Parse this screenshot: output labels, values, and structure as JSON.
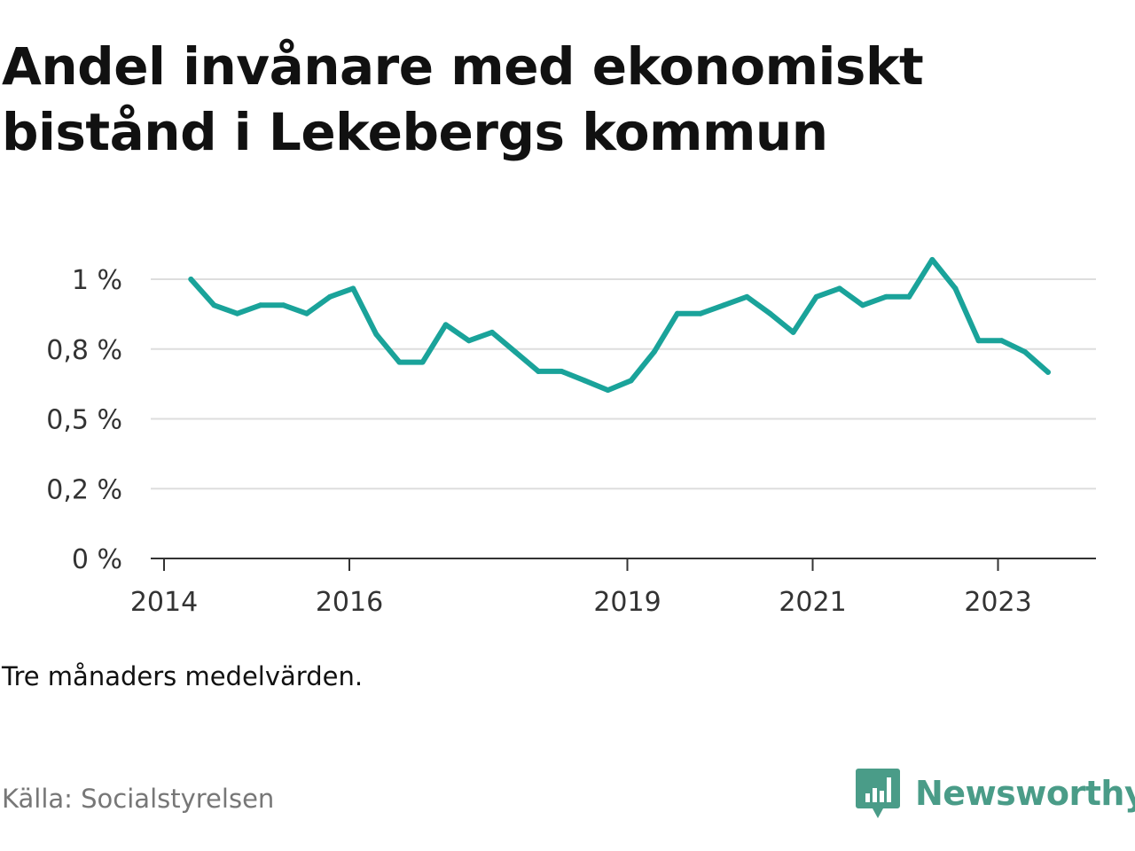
{
  "title": "Andel invånare med ekonomiskt bistånd i Lekebergs kommun",
  "note": "Tre månaders medelvärden.",
  "source": "Källa: Socialstyrelsen",
  "brand": {
    "name": "Newsworthy",
    "icon": "bar-chart-speech-bubble-icon",
    "color": "#4a9c88"
  },
  "colors": {
    "line": "#1aa39a",
    "grid": "#dddddd",
    "axis": "#333333"
  },
  "chart_data": {
    "type": "line",
    "title": "Andel invånare med ekonomiskt bistånd i Lekebergs kommun",
    "xlabel": "",
    "ylabel": "",
    "ylim": [
      0,
      1.0
    ],
    "grid": true,
    "y_ticks": [
      {
        "value": 0,
        "label": "0 %"
      },
      {
        "value": 0.25,
        "label": "0,2 %"
      },
      {
        "value": 0.5,
        "label": "0,5 %"
      },
      {
        "value": 0.75,
        "label": "0,8 %"
      },
      {
        "value": 1.0,
        "label": "1 %"
      }
    ],
    "x_ticks": [
      {
        "value": 2014,
        "label": "2014"
      },
      {
        "value": 2016,
        "label": "2016"
      },
      {
        "value": 2019,
        "label": "2019"
      },
      {
        "value": 2021,
        "label": "2021"
      },
      {
        "value": 2023,
        "label": "2023"
      }
    ],
    "xlim": [
      2014.0,
      2024.0
    ],
    "series": [
      {
        "x": [
          2014.29,
          2014.54,
          2014.79,
          2015.04,
          2015.29,
          2015.54,
          2015.79,
          2016.04,
          2016.29,
          2016.54,
          2016.79,
          2017.04,
          2017.29,
          2017.54,
          2017.79,
          2018.04,
          2018.29,
          2018.54,
          2018.79,
          2019.04,
          2019.29,
          2019.54,
          2019.79,
          2020.04,
          2020.29,
          2020.54,
          2020.79,
          2021.04,
          2021.29,
          2021.54,
          2021.79,
          2022.04,
          2022.29,
          2022.54,
          2022.79,
          2023.04,
          2023.29,
          2023.54
        ],
        "values": [
          1.0,
          0.907,
          0.877,
          0.907,
          0.907,
          0.877,
          0.937,
          0.967,
          0.803,
          0.703,
          0.703,
          0.837,
          0.78,
          0.81,
          0.74,
          0.67,
          0.67,
          0.637,
          0.603,
          0.637,
          0.74,
          0.877,
          0.877,
          0.907,
          0.937,
          0.877,
          0.81,
          0.937,
          0.967,
          0.907,
          0.937,
          0.937,
          1.07,
          0.967,
          0.78,
          0.78,
          0.74,
          0.667
        ]
      }
    ]
  }
}
